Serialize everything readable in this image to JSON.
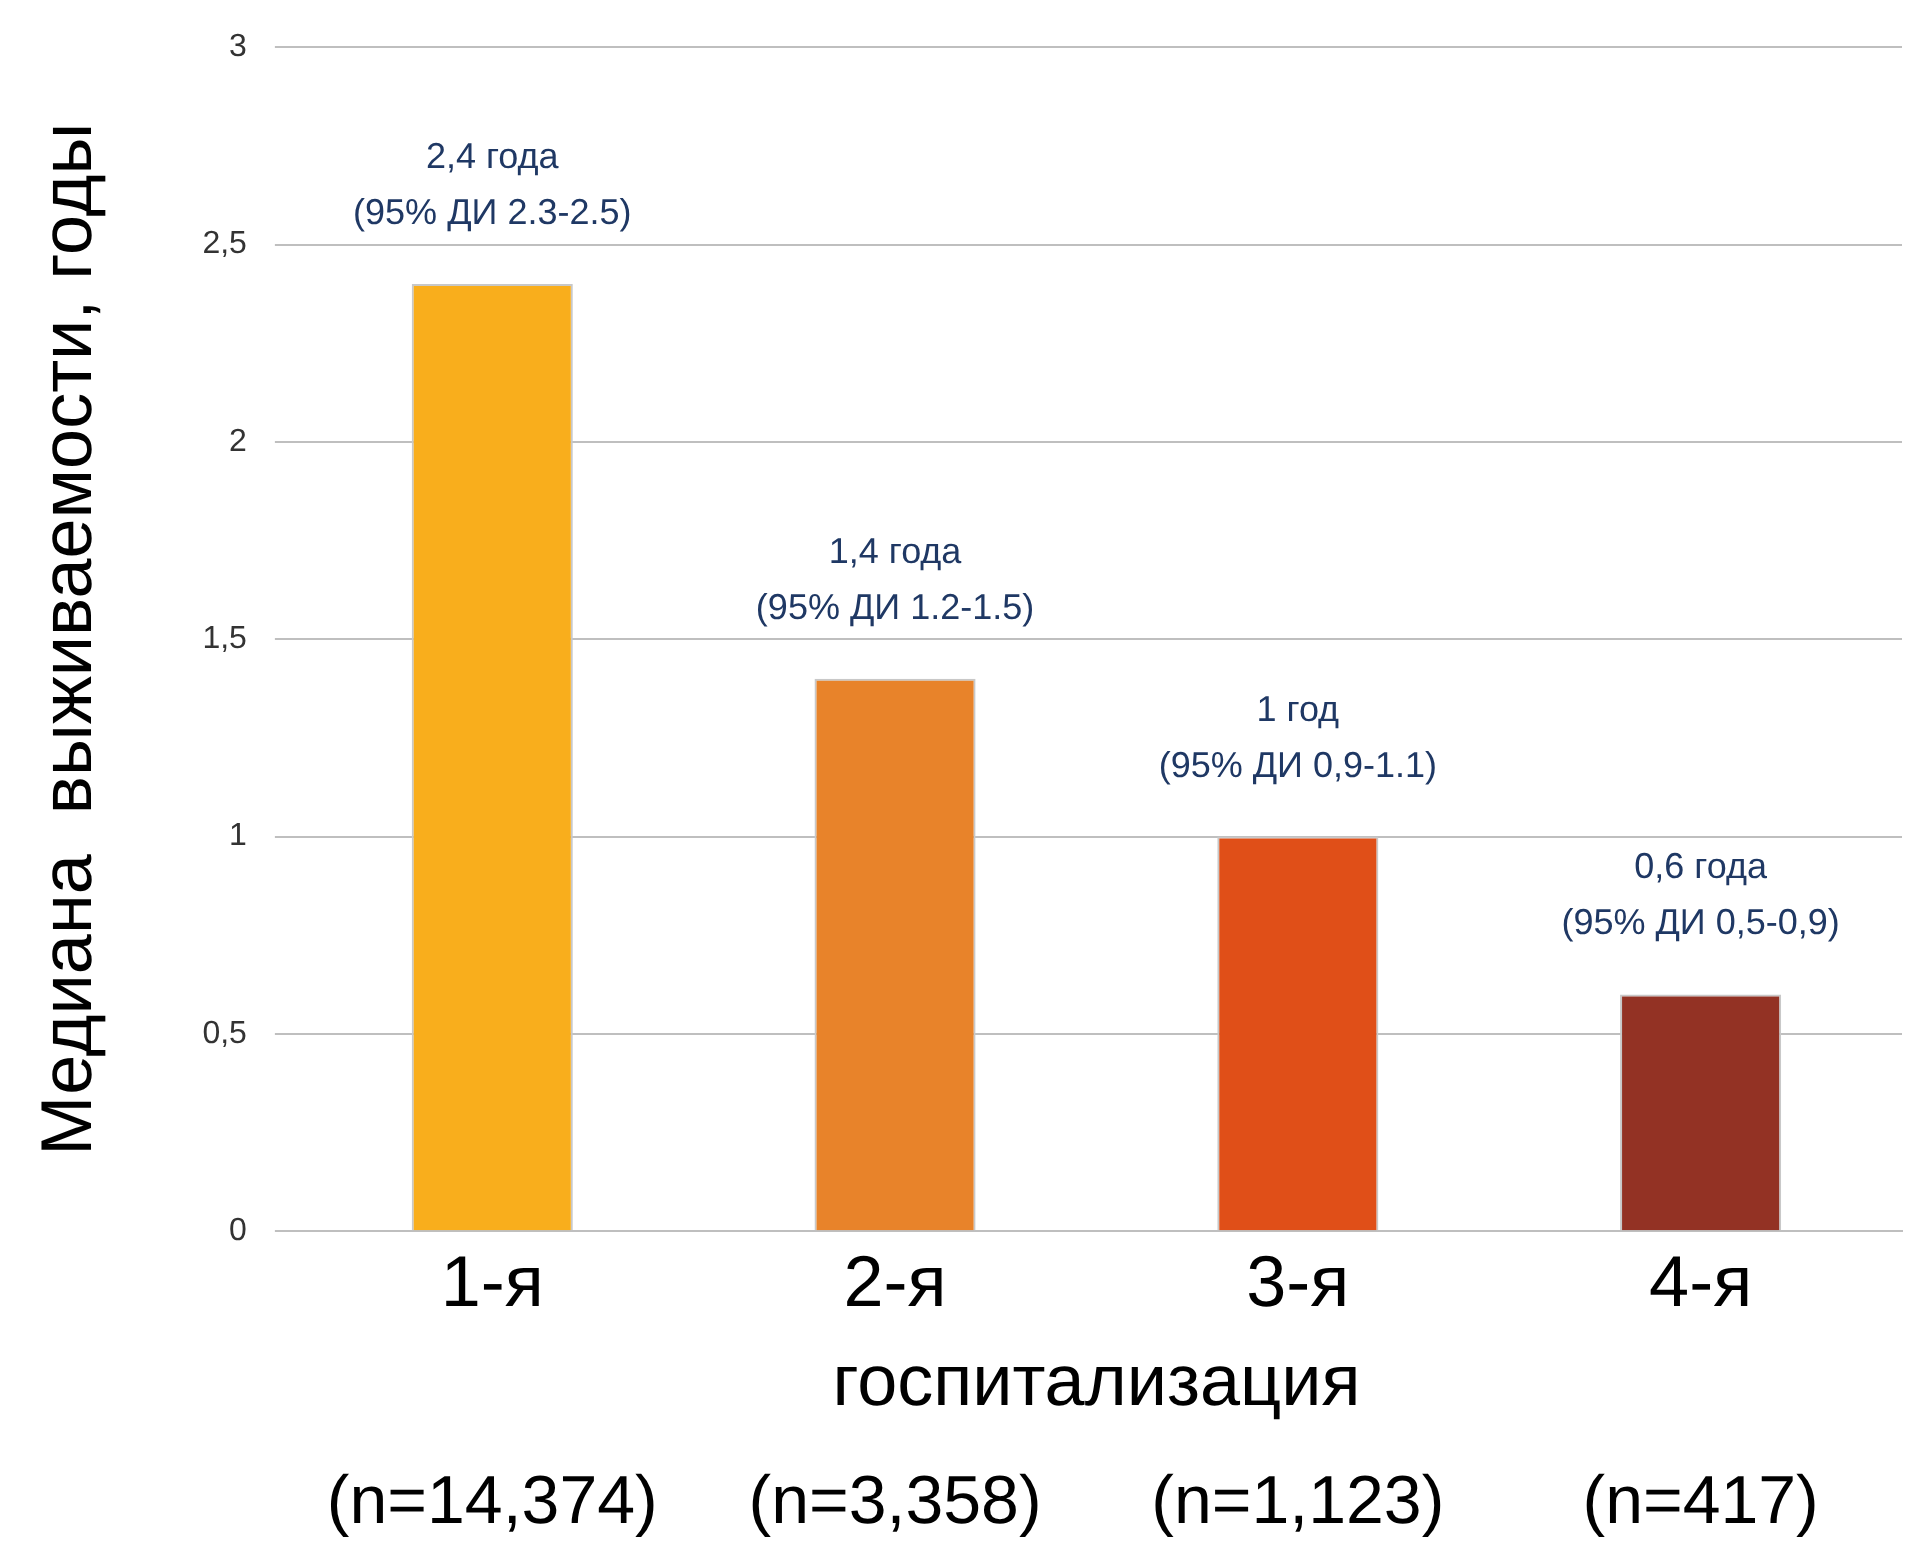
{
  "chart_data": {
    "type": "bar",
    "ylabel": "Медиана  выживаемости, годы",
    "xlabel": "госпитализация",
    "categories": [
      "1-я",
      "2-я",
      "3-я",
      "4-я"
    ],
    "values": [
      2.4,
      1.4,
      1,
      0.6
    ],
    "colors": [
      "#f9ae1c",
      "#e8832a",
      "#e04f18",
      "#933224"
    ],
    "value_labels": [
      "2,4 года\n(95% ДИ 2.3-2.5)",
      "1,4 года\n(95% ДИ 1.2-1.5)",
      "1 год\n(95% ДИ 0,9-1.1)",
      "0,6 года\n(95% ДИ 0,5-0,9)"
    ],
    "ylim": [
      0,
      3
    ],
    "yticks": [
      0,
      {
        "value": 0.5,
        "label": "0,5"
      },
      1,
      {
        "value": 1.5,
        "label": "1,5"
      },
      2,
      {
        "value": 2.5,
        "label": "2,5"
      },
      3
    ],
    "grid": "y",
    "annotations": [
      "(n=14,374)",
      "(n=3,358)",
      "(n=1,123)",
      "(n=417)"
    ]
  }
}
